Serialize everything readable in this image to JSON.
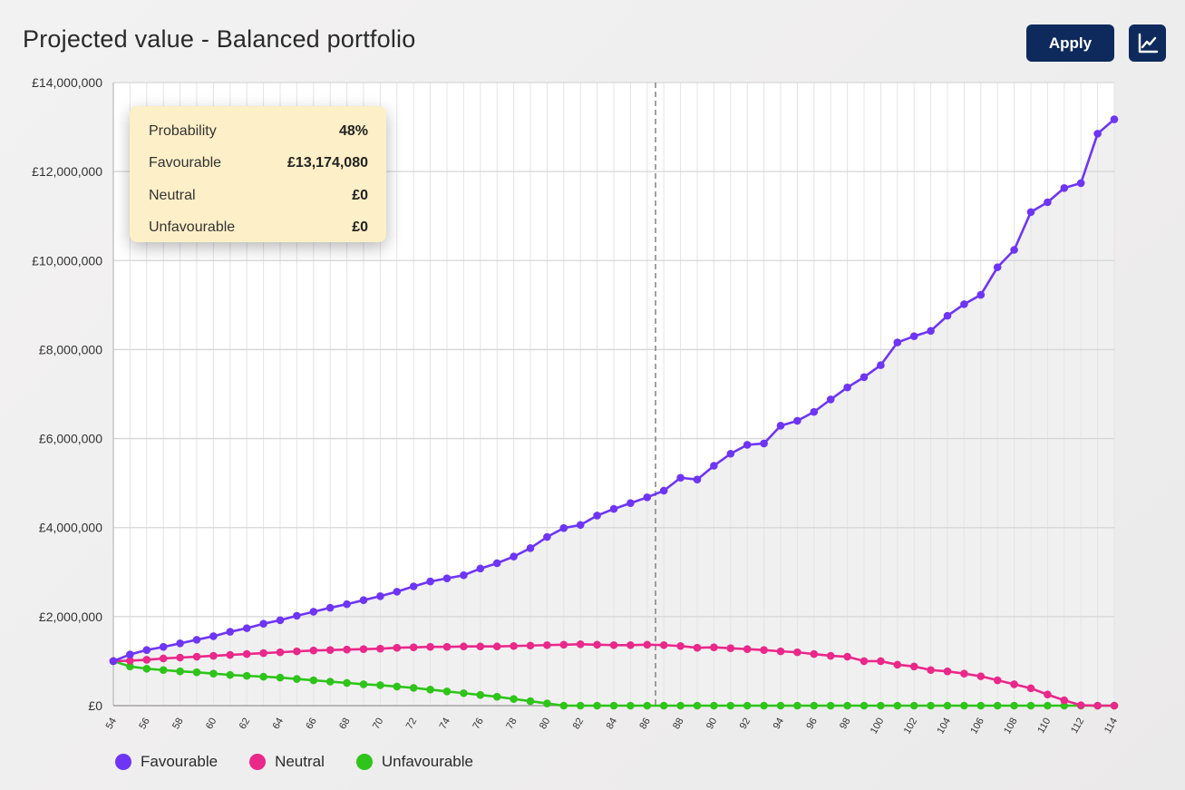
{
  "header": {
    "title": "Projected value - Balanced portfolio",
    "apply_label": "Apply",
    "chart_toggle_icon": "line-chart-icon"
  },
  "tooltip": {
    "rows": [
      {
        "label": "Probability",
        "value": "48%"
      },
      {
        "label": "Favourable",
        "value": "£13,174,080"
      },
      {
        "label": "Neutral",
        "value": "£0"
      },
      {
        "label": "Unfavourable",
        "value": "£0"
      }
    ]
  },
  "colors": {
    "favourable": "#6e35f5",
    "neutral": "#e9288a",
    "unfavourable": "#2ec41a",
    "button": "#0e2a5c"
  },
  "legend": [
    {
      "label": "Favourable",
      "color": "#6e35f5"
    },
    {
      "label": "Neutral",
      "color": "#e9288a"
    },
    {
      "label": "Unfavourable",
      "color": "#2ec41a"
    }
  ],
  "chart_data": {
    "type": "line",
    "title": "Projected value - Balanced portfolio",
    "xlabel": "",
    "ylabel": "",
    "xlim": [
      54,
      114
    ],
    "ylim": [
      0,
      14000000
    ],
    "yticks": [
      0,
      2000000,
      4000000,
      6000000,
      8000000,
      10000000,
      12000000,
      14000000
    ],
    "ytick_labels": [
      "£0",
      "£2,000,000",
      "£4,000,000",
      "£6,000,000",
      "£8,000,000",
      "£10,000,000",
      "£12,000,000",
      "£14,000,000"
    ],
    "xticks": [
      54,
      56,
      58,
      60,
      62,
      64,
      66,
      68,
      70,
      72,
      74,
      76,
      78,
      80,
      82,
      84,
      86,
      88,
      90,
      92,
      94,
      96,
      98,
      100,
      102,
      104,
      106,
      108,
      110,
      112,
      114
    ],
    "xtick_labels": [
      "54",
      "56",
      "58",
      "60",
      "62",
      "64",
      "66",
      "68",
      "70",
      "72",
      "74",
      "76",
      "78",
      "80",
      "82",
      "84",
      "86",
      "88",
      "90",
      "92",
      "94",
      "96",
      "98",
      "100",
      "102",
      "104",
      "106",
      "108",
      "110",
      "112",
      "114"
    ],
    "grid": true,
    "marker_x": 86.5,
    "legend_position": "bottom-left",
    "series": [
      {
        "name": "Favourable",
        "color": "#6e35f5",
        "values": [
          1000000,
          1150000,
          1250000,
          1320000,
          1400000,
          1480000,
          1560000,
          1660000,
          1740000,
          1840000,
          1920000,
          2020000,
          2110000,
          2200000,
          2280000,
          2370000,
          2460000,
          2560000,
          2680000,
          2790000,
          2860000,
          2930000,
          3080000,
          3200000,
          3350000,
          3540000,
          3790000,
          3990000,
          4060000,
          4270000,
          4420000,
          4550000,
          4680000,
          4830000,
          5120000,
          5080000,
          5390000,
          5660000,
          5860000,
          5890000,
          6290000,
          6400000,
          6600000,
          6880000,
          7150000,
          7380000,
          7650000,
          8160000,
          8300000,
          8420000,
          8760000,
          9020000,
          9230000,
          9850000,
          10240000,
          11090000,
          11310000,
          11630000,
          11740000,
          12850000,
          13174080
        ]
      },
      {
        "name": "Neutral",
        "color": "#e9288a",
        "values": [
          1000000,
          1010000,
          1030000,
          1060000,
          1080000,
          1100000,
          1120000,
          1140000,
          1160000,
          1180000,
          1200000,
          1220000,
          1240000,
          1250000,
          1260000,
          1270000,
          1280000,
          1300000,
          1310000,
          1320000,
          1320000,
          1330000,
          1330000,
          1330000,
          1340000,
          1350000,
          1360000,
          1370000,
          1380000,
          1370000,
          1360000,
          1360000,
          1370000,
          1360000,
          1340000,
          1300000,
          1310000,
          1290000,
          1270000,
          1250000,
          1220000,
          1200000,
          1160000,
          1120000,
          1100000,
          1000000,
          1000000,
          920000,
          880000,
          800000,
          770000,
          720000,
          660000,
          570000,
          480000,
          390000,
          250000,
          120000,
          10000,
          0,
          0
        ]
      },
      {
        "name": "Unfavourable",
        "color": "#2ec41a",
        "values": [
          1000000,
          880000,
          830000,
          800000,
          770000,
          750000,
          720000,
          690000,
          670000,
          650000,
          630000,
          600000,
          570000,
          540000,
          510000,
          480000,
          460000,
          430000,
          400000,
          360000,
          320000,
          280000,
          240000,
          200000,
          150000,
          100000,
          50000,
          0,
          0,
          0,
          0,
          0,
          0,
          0,
          0,
          0,
          0,
          0,
          0,
          0,
          0,
          0,
          0,
          0,
          0,
          0,
          0,
          0,
          0,
          0,
          0,
          0,
          0,
          0,
          0,
          0,
          0,
          0,
          0,
          0,
          0
        ]
      }
    ]
  }
}
